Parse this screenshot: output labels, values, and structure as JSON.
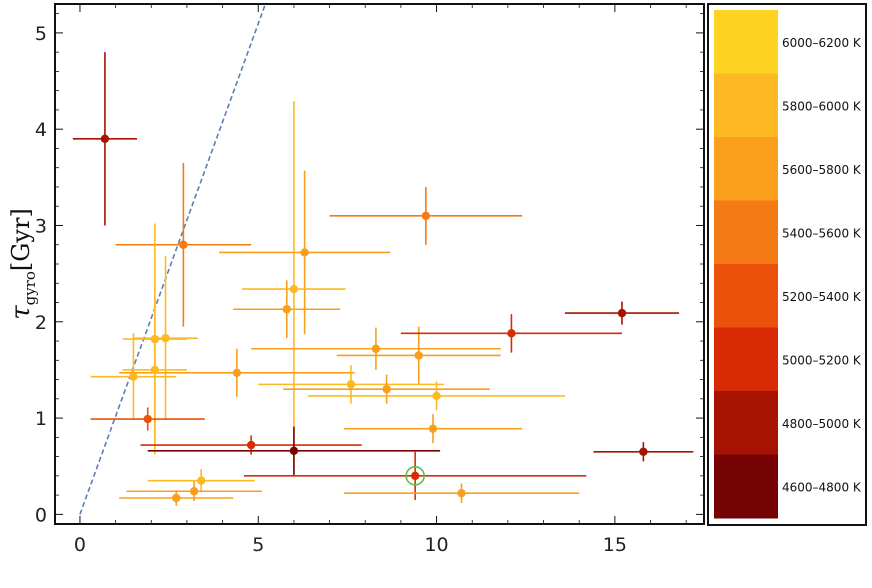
{
  "chart_data": {
    "type": "scatter",
    "title": "",
    "xlabel": "",
    "ylabel": "τ",
    "ylabel_subscript": "gyro",
    "ylabel_unit": "[Gyr]",
    "xlim": [
      -0.7,
      17.5
    ],
    "ylim": [
      -0.1,
      5.3
    ],
    "xticks": [
      "0",
      "5",
      "10",
      "15"
    ],
    "xtick_values": [
      0,
      5,
      10,
      15
    ],
    "yticks": [
      "0",
      "1",
      "2",
      "3",
      "4",
      "5"
    ],
    "ytick_values": [
      0,
      1,
      2,
      3,
      4,
      5
    ],
    "grid": false,
    "reference_line": {
      "style": "dashed",
      "color": "#5b7fb5",
      "points": [
        [
          0,
          0
        ],
        [
          5.2,
          5.3
        ]
      ]
    },
    "legend": {
      "placement": "right",
      "entries": [
        {
          "label": "6000–6200 K",
          "color": "#FFD321"
        },
        {
          "label": "5800–6000 K",
          "color": "#FDB921"
        },
        {
          "label": "5600–5800 K",
          "color": "#FA9E1E"
        },
        {
          "label": "5400–5600 K",
          "color": "#F47B14"
        },
        {
          "label": "5200–5400 K",
          "color": "#EC520C"
        },
        {
          "label": "5000–5200 K",
          "color": "#D82B05"
        },
        {
          "label": "4800–5000 K",
          "color": "#A61302"
        },
        {
          "label": "4600–4800 K",
          "color": "#760303"
        }
      ]
    },
    "highlight": {
      "x": 9.4,
      "y": 0.4,
      "color": "#5fbf45"
    },
    "points": [
      {
        "x": 0.7,
        "y": 3.9,
        "xerr": 0.9,
        "yerr": 0.9,
        "color": "#A61302"
      },
      {
        "x": 2.9,
        "y": 2.8,
        "xerr": 1.9,
        "yerr": 0.85,
        "color": "#F47B14"
      },
      {
        "x": 9.7,
        "y": 3.1,
        "xerr": 2.7,
        "yerr": 0.3,
        "color": "#F47B14"
      },
      {
        "x": 6.3,
        "y": 2.72,
        "xerr": 2.4,
        "yerr": 0.85,
        "color": "#FA9E1E"
      },
      {
        "x": 5.8,
        "y": 2.13,
        "xerr": 1.5,
        "yerr": 0.3,
        "color": "#FA9E1E"
      },
      {
        "x": 6.0,
        "y": 2.34,
        "xerr": 1.45,
        "yerr": 1.95,
        "color": "#FDB921"
      },
      {
        "x": 2.4,
        "y": 1.83,
        "xerr": 0.9,
        "yerr": 0.85,
        "color": "#FDB921"
      },
      {
        "x": 2.1,
        "y": 1.82,
        "xerr": 0.9,
        "yerr": 1.2,
        "color": "#FDB921"
      },
      {
        "x": 2.1,
        "y": 1.5,
        "xerr": 0.9,
        "yerr": 0.75,
        "color": "#FDB921"
      },
      {
        "x": 1.5,
        "y": 1.43,
        "xerr": 1.2,
        "yerr": 0.45,
        "color": "#FDB921"
      },
      {
        "x": 4.4,
        "y": 1.47,
        "xerr": 3.3,
        "yerr": 0.25,
        "color": "#FA9E1E"
      },
      {
        "x": 8.3,
        "y": 1.72,
        "xerr": 3.5,
        "yerr": 0.22,
        "color": "#FA9E1E"
      },
      {
        "x": 9.5,
        "y": 1.65,
        "xerr": 2.3,
        "yerr": 0.3,
        "color": "#FA9E1E"
      },
      {
        "x": 12.1,
        "y": 1.88,
        "xerr": 3.1,
        "yerr": 0.2,
        "color": "#D82B05"
      },
      {
        "x": 15.2,
        "y": 2.09,
        "xerr": 1.6,
        "yerr": 0.12,
        "color": "#A61302"
      },
      {
        "x": 7.6,
        "y": 1.35,
        "xerr": 2.6,
        "yerr": 0.2,
        "color": "#FDB921"
      },
      {
        "x": 8.6,
        "y": 1.3,
        "xerr": 2.9,
        "yerr": 0.15,
        "color": "#FA9E1E"
      },
      {
        "x": 10.0,
        "y": 1.23,
        "xerr": 3.6,
        "yerr": 0.15,
        "color": "#FDB921"
      },
      {
        "x": 9.9,
        "y": 0.89,
        "xerr": 2.5,
        "yerr": 0.15,
        "color": "#FA9E1E"
      },
      {
        "x": 1.9,
        "y": 0.99,
        "xerr": 1.6,
        "yerr": 0.12,
        "color": "#EC520C"
      },
      {
        "x": 4.8,
        "y": 0.72,
        "xerr": 3.1,
        "yerr": 0.1,
        "color": "#D82B05"
      },
      {
        "x": 6.0,
        "y": 0.66,
        "xerr": 4.1,
        "yerr": 0.25,
        "color": "#760303"
      },
      {
        "x": 9.4,
        "y": 0.4,
        "xerr": 4.8,
        "yerr": 0.25,
        "color": "#D82B05"
      },
      {
        "x": 15.8,
        "y": 0.65,
        "xerr": 1.4,
        "yerr": 0.1,
        "color": "#A61302"
      },
      {
        "x": 3.4,
        "y": 0.35,
        "xerr": 1.5,
        "yerr": 0.12,
        "color": "#FDB921"
      },
      {
        "x": 3.2,
        "y": 0.24,
        "xerr": 1.9,
        "yerr": 0.1,
        "color": "#FA9E1E"
      },
      {
        "x": 2.7,
        "y": 0.17,
        "xerr": 1.6,
        "yerr": 0.08,
        "color": "#FA9E1E"
      },
      {
        "x": 10.7,
        "y": 0.22,
        "xerr": 3.3,
        "yerr": 0.1,
        "color": "#FA9E1E"
      }
    ]
  }
}
